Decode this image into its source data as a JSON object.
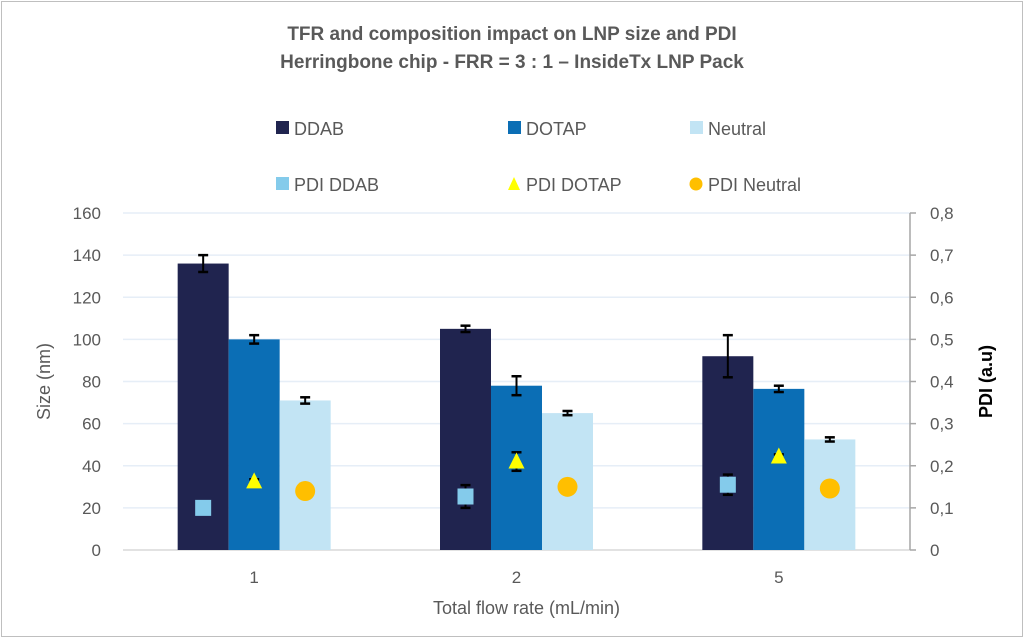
{
  "chart_data": {
    "type": "bar",
    "title": "TFR and composition impact on LNP size and PDI",
    "subtitle": "Herringbone chip - FRR = 3 : 1 – InsideTx LNP Pack",
    "xlabel": "Total flow rate (mL/min)",
    "ylabel": "Size (nm)",
    "y2label": "PDI (a.u)",
    "categories": [
      "1",
      "2",
      "5"
    ],
    "ylim": [
      0,
      160
    ],
    "yticks": [
      "0",
      "20",
      "40",
      "60",
      "80",
      "100",
      "120",
      "140",
      "160"
    ],
    "y2lim": [
      0,
      0.8
    ],
    "y2ticks": [
      "0",
      "0,1",
      "0,2",
      "0,3",
      "0,4",
      "0,5",
      "0,6",
      "0,7",
      "0,8"
    ],
    "grid": true,
    "legend_placement": "top",
    "series": [
      {
        "name": "DDAB",
        "kind": "bar",
        "axis": "left",
        "color": "#20244f",
        "values": [
          136,
          105,
          92
        ],
        "errors": [
          4,
          1.5,
          10
        ]
      },
      {
        "name": "DOTAP",
        "kind": "bar",
        "axis": "left",
        "color": "#0b6eb5",
        "values": [
          100,
          78,
          76.5
        ],
        "errors": [
          2,
          4.5,
          1.5
        ]
      },
      {
        "name": "Neutral",
        "kind": "bar",
        "axis": "left",
        "color": "#c2e4f4",
        "values": [
          71,
          65,
          52.5
        ],
        "errors": [
          1.5,
          1,
          1
        ]
      },
      {
        "name": "PDI DDAB",
        "kind": "marker",
        "marker": "square",
        "axis": "right",
        "color": "#84cbeb",
        "values": [
          0.1,
          0.127,
          0.155
        ],
        "errors": [
          0,
          0.027,
          0.024
        ]
      },
      {
        "name": "PDI DOTAP",
        "kind": "marker",
        "marker": "triangle",
        "axis": "right",
        "color": "#ffff00",
        "values": [
          0.163,
          0.21,
          0.222
        ],
        "errors": [
          0.005,
          0.022,
          0.005
        ]
      },
      {
        "name": "PDI Neutral",
        "kind": "marker",
        "marker": "circle",
        "axis": "right",
        "color": "#ffbf00",
        "values": [
          0.14,
          0.15,
          0.146
        ],
        "errors": [
          0,
          0,
          0
        ]
      }
    ]
  }
}
